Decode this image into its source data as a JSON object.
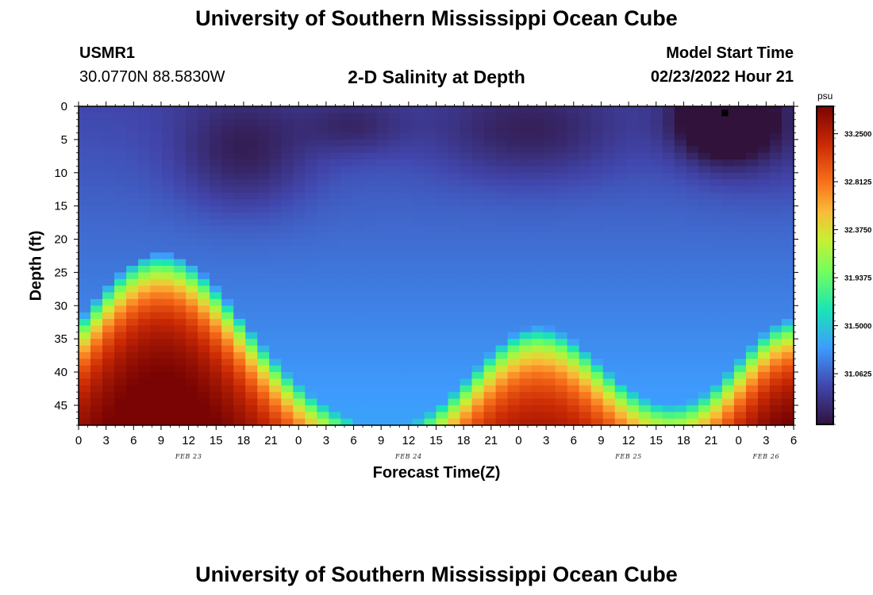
{
  "page": {
    "title": "University of Southern Mississippi Ocean Cube",
    "station_id": "USMR1",
    "station_coords": "30.0770N  88.5830W",
    "subtitle": "2-D Salinity at Depth",
    "model_start_label": "Model Start Time",
    "model_start_value": "02/23/2022 Hour 21",
    "footer_title": "University of Southern Mississippi Ocean Cube"
  },
  "chart_data": {
    "type": "heatmap",
    "title": "2-D Salinity at Depth",
    "xlabel": "Forecast Time(Z)",
    "ylabel": "Depth (ft)",
    "xlim": [
      0,
      78
    ],
    "ylim": [
      0,
      48
    ],
    "y_inverted": true,
    "x_tick_labels": [
      "0",
      "3",
      "6",
      "9",
      "12",
      "15",
      "18",
      "21",
      "0",
      "3",
      "6",
      "9",
      "12",
      "15",
      "18",
      "21",
      "0",
      "3",
      "6",
      "9",
      "12",
      "15",
      "18",
      "21",
      "0",
      "3",
      "6"
    ],
    "x_tick_hours": [
      0,
      3,
      6,
      9,
      12,
      15,
      18,
      21,
      24,
      27,
      30,
      33,
      36,
      39,
      42,
      45,
      48,
      51,
      54,
      57,
      60,
      63,
      66,
      69,
      72,
      75,
      78
    ],
    "day_labels": [
      {
        "label": "FEB 23",
        "hour": 12
      },
      {
        "label": "FEB 24",
        "hour": 36
      },
      {
        "label": "FEB 25",
        "hour": 60
      },
      {
        "label": "FEB 26",
        "hour": 75
      }
    ],
    "y_ticks": [
      0,
      5,
      10,
      15,
      20,
      25,
      30,
      35,
      40,
      45
    ],
    "colorbar": {
      "unit": "psu",
      "range": [
        30.6,
        33.5
      ],
      "tick_labels": [
        "33.2500",
        "32.8125",
        "32.3750",
        "31.9375",
        "31.5000",
        "31.0625"
      ],
      "tick_values": [
        33.25,
        32.8125,
        32.375,
        31.9375,
        31.5,
        31.0625
      ],
      "colormap": "rainbow (dark purple → blue → cyan → green → yellow → orange → red → dark red)"
    },
    "features": [
      {
        "description": "high salinity bottom layer",
        "hour_range": [
          0,
          30
        ],
        "depth_range": [
          20,
          48
        ],
        "salinity_max": 33.3
      },
      {
        "description": "high salinity bottom layer",
        "hour_range": [
          40,
          62
        ],
        "depth_range": [
          30,
          48
        ],
        "salinity_max": 33.0
      },
      {
        "description": "high salinity bottom layer",
        "hour_range": [
          64,
          78
        ],
        "depth_range": [
          30,
          48
        ],
        "salinity_max": 33.4
      },
      {
        "description": "low salinity surface minimum",
        "hour_range": [
          66,
          78
        ],
        "depth_range": [
          0,
          6
        ],
        "salinity_min": 30.6
      }
    ]
  }
}
